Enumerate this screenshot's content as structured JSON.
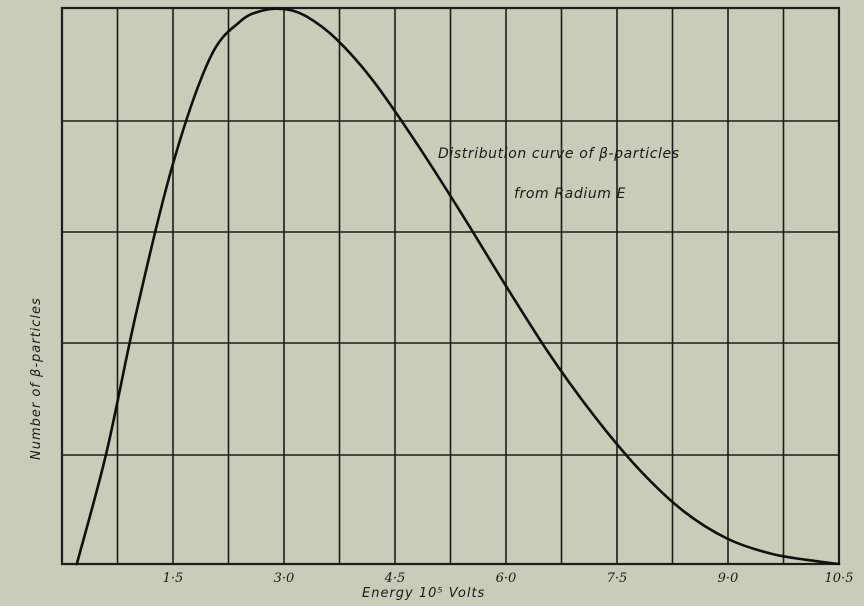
{
  "chart_data": {
    "type": "line",
    "title": "Distribution curve of β-particles",
    "subtitle": "from Radium E",
    "xlabel": "Energy 10⁵ Volts",
    "ylabel": "Number of β-particles",
    "xlim": [
      0,
      10.5
    ],
    "ylim": [
      0,
      10
    ],
    "x_ticks": [
      1.5,
      3.0,
      4.5,
      6.0,
      7.5,
      9.0,
      10.5
    ],
    "x_tick_labels": [
      "1·5",
      "3·0",
      "4·5",
      "6·0",
      "7·5",
      "9·0",
      "10·5"
    ],
    "grid": true,
    "legend": "none",
    "series": [
      {
        "x": [
          0.2,
          0.6,
          1.0,
          1.5,
          2.0,
          2.4,
          2.7,
          3.0,
          3.3,
          3.7,
          4.2,
          4.8,
          5.4,
          6.0,
          6.6,
          7.2,
          7.8,
          8.4,
          9.0,
          9.6,
          10.2,
          10.5
        ],
        "y": [
          0.0,
          2.0,
          4.5,
          7.2,
          9.1,
          9.75,
          9.95,
          9.98,
          9.85,
          9.45,
          8.7,
          7.55,
          6.3,
          5.0,
          3.75,
          2.65,
          1.7,
          0.95,
          0.45,
          0.18,
          0.05,
          0.0
        ]
      }
    ]
  },
  "colors": {
    "paper": "#c9ccb6",
    "ink": "#1c1c1c"
  }
}
